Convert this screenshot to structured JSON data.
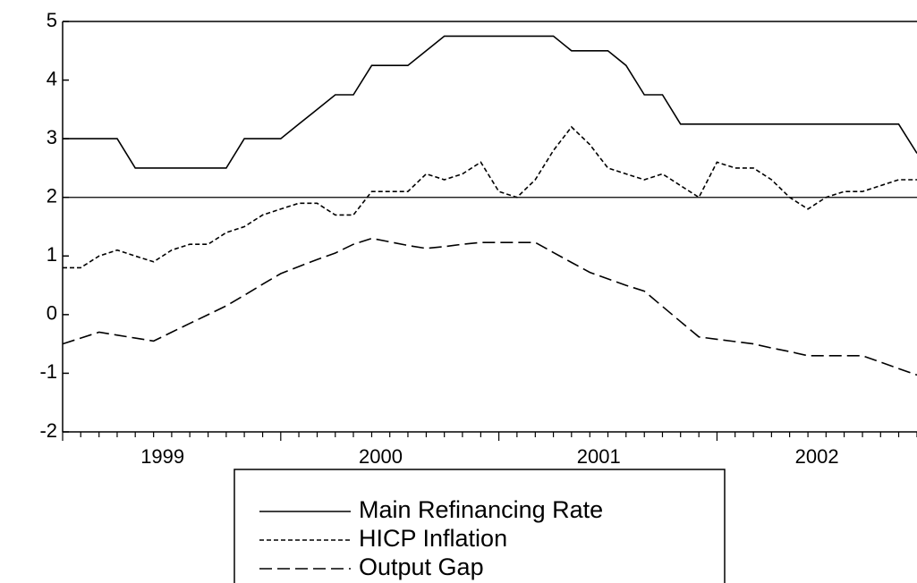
{
  "chart_data": {
    "type": "line",
    "x": [
      1999.0,
      1999.083,
      1999.167,
      1999.25,
      1999.333,
      1999.417,
      1999.5,
      1999.583,
      1999.667,
      1999.75,
      1999.833,
      1999.917,
      2000.0,
      2000.083,
      2000.167,
      2000.25,
      2000.333,
      2000.417,
      2000.5,
      2000.583,
      2000.667,
      2000.75,
      2000.833,
      2000.917,
      2001.0,
      2001.083,
      2001.167,
      2001.25,
      2001.333,
      2001.417,
      2001.5,
      2001.583,
      2001.667,
      2001.75,
      2001.833,
      2001.917,
      2002.0,
      2002.083,
      2002.167,
      2002.25,
      2002.333,
      2002.417,
      2002.5,
      2002.583,
      2002.667,
      2002.75,
      2002.833,
      2002.917
    ],
    "xlim": [
      1999.0,
      2002.917
    ],
    "xticks": [
      {
        "value": 1999.458,
        "label": "1999"
      },
      {
        "value": 2000.458,
        "label": "2000"
      },
      {
        "value": 2001.458,
        "label": "2001"
      },
      {
        "value": 2002.458,
        "label": "2002"
      }
    ],
    "ylim": [
      -2,
      5
    ],
    "yticks": [
      -2,
      -1,
      0,
      1,
      2,
      3,
      4,
      5
    ],
    "hline": 2,
    "legend": "bottom",
    "series": [
      {
        "name": "Main Refinancing Rate",
        "color": "#000000",
        "dash": "solid",
        "values": [
          3,
          3,
          3,
          3,
          2.5,
          2.5,
          2.5,
          2.5,
          2.5,
          2.5,
          3,
          3,
          3,
          3.25,
          3.5,
          3.75,
          3.75,
          4.25,
          4.25,
          4.25,
          4.5,
          4.75,
          4.75,
          4.75,
          4.75,
          4.75,
          4.75,
          4.75,
          4.5,
          4.5,
          4.5,
          4.25,
          3.75,
          3.75,
          3.25,
          3.25,
          3.25,
          3.25,
          3.25,
          3.25,
          3.25,
          3.25,
          3.25,
          3.25,
          3.25,
          3.25,
          3.25,
          2.75
        ]
      },
      {
        "name": "HICP Inflation",
        "color": "#000000",
        "dash": "short",
        "values": [
          0.8,
          0.8,
          1.0,
          1.1,
          1.0,
          0.9,
          1.1,
          1.2,
          1.2,
          1.4,
          1.5,
          1.7,
          1.8,
          1.9,
          1.9,
          1.7,
          1.7,
          2.1,
          2.1,
          2.1,
          2.4,
          2.3,
          2.4,
          2.6,
          2.1,
          2.0,
          2.3,
          2.8,
          3.2,
          2.9,
          2.5,
          2.4,
          2.3,
          2.4,
          2.2,
          2.0,
          2.6,
          2.5,
          2.5,
          2.3,
          2.0,
          1.8,
          2.0,
          2.1,
          2.1,
          2.2,
          2.3,
          2.3
        ]
      },
      {
        "name": "Output Gap",
        "color": "#000000",
        "dash": "long",
        "values": [
          -0.5,
          -0.4,
          -0.3,
          -0.35,
          -0.4,
          -0.45,
          -0.3,
          -0.15,
          0.0,
          0.15,
          0.33,
          0.52,
          0.7,
          0.82,
          0.94,
          1.05,
          1.2,
          1.3,
          1.24,
          1.18,
          1.13,
          1.16,
          1.2,
          1.23,
          1.23,
          1.23,
          1.23,
          1.06,
          0.89,
          0.72,
          0.61,
          0.5,
          0.4,
          0.14,
          -0.12,
          -0.38,
          -0.42,
          -0.46,
          -0.5,
          -0.57,
          -0.63,
          -0.7,
          -0.7,
          -0.7,
          -0.7,
          -0.81,
          -0.92,
          -1.03
        ]
      }
    ]
  }
}
